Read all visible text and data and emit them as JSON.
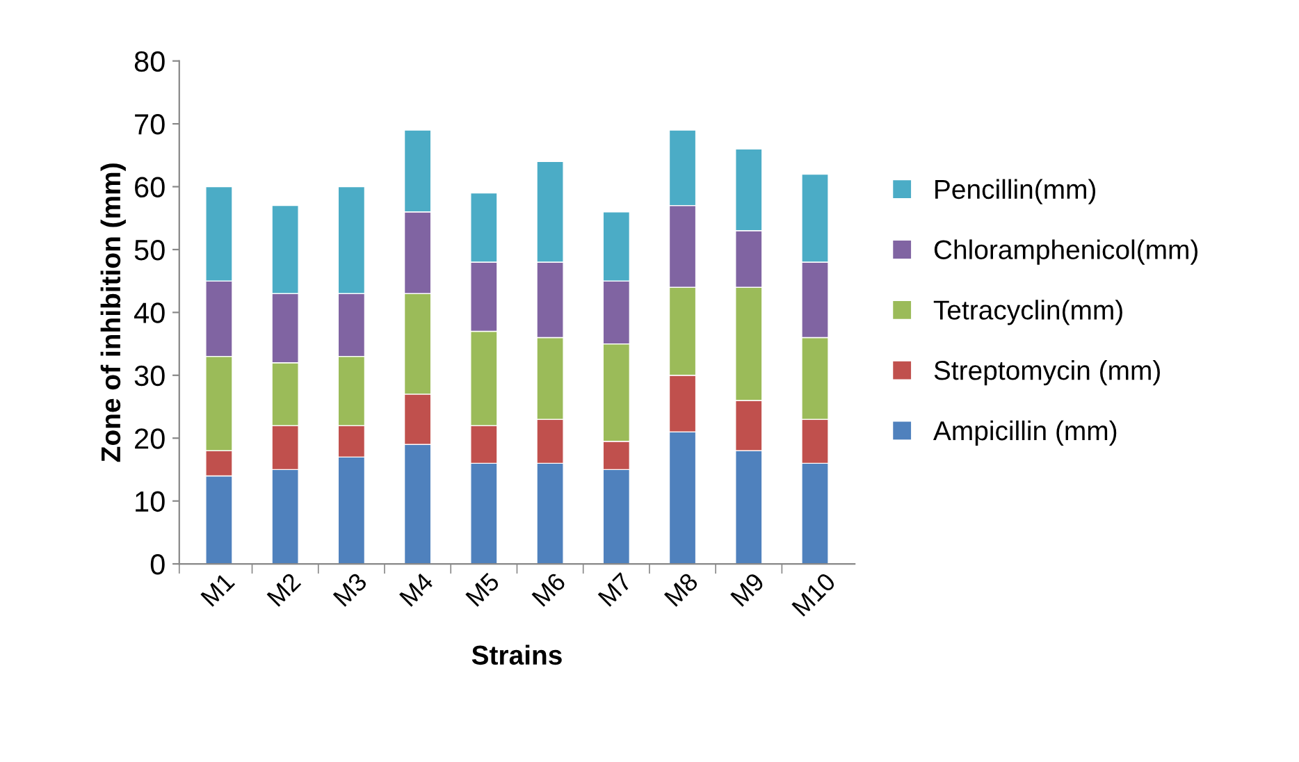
{
  "chart_data": {
    "type": "bar",
    "stacked": true,
    "xlabel": "Strains",
    "ylabel": "Zone of inhibition (mm)",
    "categories": [
      "M1",
      "M2",
      "M3",
      "M4",
      "M5",
      "M6",
      "M7",
      "M8",
      "M9",
      "M10"
    ],
    "series": [
      {
        "name": "Ampicillin (mm)",
        "color": "#4f81bd",
        "values": [
          14,
          15,
          17,
          19,
          16,
          16,
          15,
          21,
          18,
          16
        ]
      },
      {
        "name": "Streptomycin (mm)",
        "color": "#c0504d",
        "values": [
          4,
          7,
          5,
          8,
          6,
          7,
          4.5,
          9,
          8,
          7
        ]
      },
      {
        "name": "Tetracyclin(mm)",
        "color": "#9bbb59",
        "values": [
          15,
          10,
          11,
          16,
          15,
          13,
          15.5,
          14,
          18,
          13
        ]
      },
      {
        "name": "Chloramphenicol(mm)",
        "color": "#8064a2",
        "values": [
          12,
          11,
          10,
          13,
          11,
          12,
          10,
          13,
          9,
          12
        ]
      },
      {
        "name": "Pencillin(mm)",
        "color": "#4bacc6",
        "values": [
          15,
          14,
          17,
          13,
          11,
          16,
          11,
          12,
          13,
          14
        ]
      }
    ],
    "ylim": [
      0,
      80
    ],
    "yticks": [
      0,
      10,
      20,
      30,
      40,
      50,
      60,
      70,
      80
    ],
    "grid": false,
    "legend": "right"
  }
}
